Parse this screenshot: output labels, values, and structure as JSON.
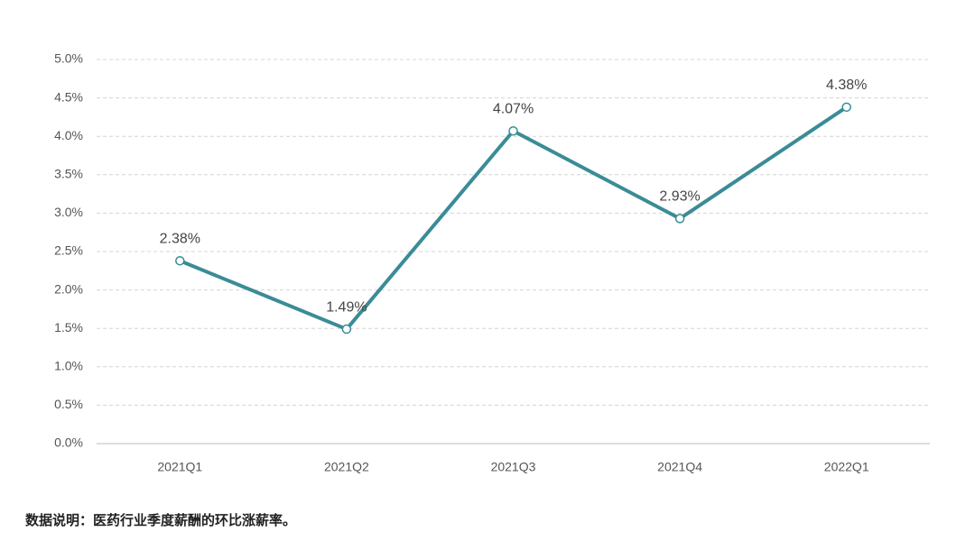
{
  "chart_data": {
    "type": "line",
    "categories": [
      "2021Q1",
      "2021Q2",
      "2021Q3",
      "2021Q4",
      "2022Q1"
    ],
    "series": [
      {
        "color": "#3a8c96",
        "values": [
          2.38,
          1.49,
          4.07,
          2.93,
          4.38
        ],
        "value_labels": [
          "2.38%",
          "1.49%",
          "4.07%",
          "2.93%",
          "4.38%"
        ]
      }
    ],
    "ylim": [
      0,
      5
    ],
    "yticks": [
      {
        "value": 0,
        "label": "0.0%"
      },
      {
        "value": 0.5,
        "label": "0.5%"
      },
      {
        "value": 1,
        "label": "1.0%"
      },
      {
        "value": 1.5,
        "label": "1.5%"
      },
      {
        "value": 2,
        "label": "2.0%"
      },
      {
        "value": 2.5,
        "label": "2.5%"
      },
      {
        "value": 3,
        "label": "3.0%"
      },
      {
        "value": 3.5,
        "label": "3.5%"
      },
      {
        "value": 4,
        "label": "4.0%"
      },
      {
        "value": 4.5,
        "label": "4.5%"
      },
      {
        "value": 5,
        "label": "5.0%"
      }
    ],
    "grid": true,
    "note": "数据说明：医药行业季度薪酬的环比涨薪率。"
  }
}
